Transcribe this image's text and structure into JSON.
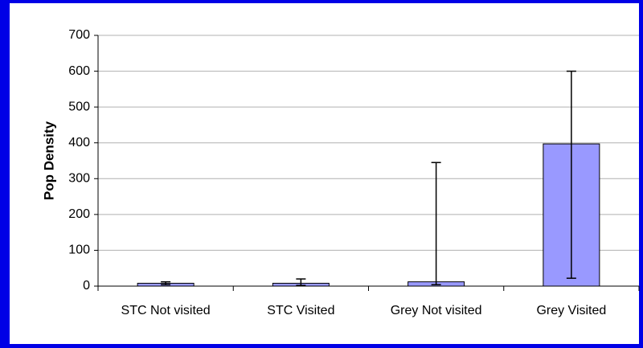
{
  "chart_data": {
    "type": "bar",
    "y_label": "Pop Density",
    "categories": [
      "STC Not visited",
      "STC Visited",
      "Grey Not visited",
      "Grey Visited"
    ],
    "values": [
      8,
      8,
      12,
      397
    ],
    "errors_plus": [
      4,
      12,
      333,
      203
    ],
    "errors_minus": [
      4,
      6,
      8,
      375
    ],
    "color": "#9999ff",
    "ylim": [
      0,
      700
    ],
    "yticks": [
      0,
      100,
      200,
      300,
      400,
      500,
      600,
      700
    ],
    "grid": true
  }
}
